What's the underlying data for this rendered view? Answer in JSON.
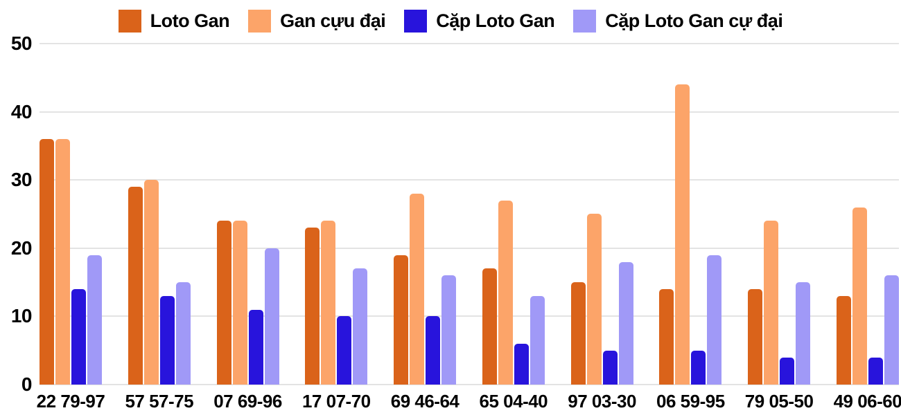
{
  "chart_data": {
    "type": "bar",
    "title": "",
    "xlabel": "",
    "ylabel": "",
    "categories": [
      "22 79-97",
      "57 57-75",
      "07 69-96",
      "17 07-70",
      "69 46-64",
      "65 04-40",
      "97 03-30",
      "06 59-95",
      "79 05-50",
      "49 06-60"
    ],
    "series": [
      {
        "name": "Loto Gan",
        "color": "#da631a",
        "values": [
          36,
          29,
          24,
          23,
          19,
          17,
          15,
          14,
          14,
          13
        ]
      },
      {
        "name": "Gan cựu đại",
        "color": "#fca469",
        "values": [
          36,
          30,
          24,
          24,
          28,
          27,
          25,
          44,
          24,
          26
        ]
      },
      {
        "name": "Cặp Loto Gan",
        "color": "#2814dc",
        "values": [
          14,
          13,
          11,
          10,
          10,
          6,
          5,
          5,
          4,
          4
        ]
      },
      {
        "name": "Cặp Loto Gan cự đại",
        "color": "#a099f7",
        "values": [
          19,
          15,
          20,
          17,
          16,
          13,
          18,
          19,
          15,
          16
        ]
      }
    ],
    "ylim": [
      0,
      50
    ],
    "yticks": [
      0,
      10,
      20,
      30,
      40,
      50
    ],
    "grid": true,
    "legend_position": "top"
  },
  "colors": {
    "background": "#ffffff",
    "gridline": "#e3e3e3",
    "text": "#000000"
  }
}
